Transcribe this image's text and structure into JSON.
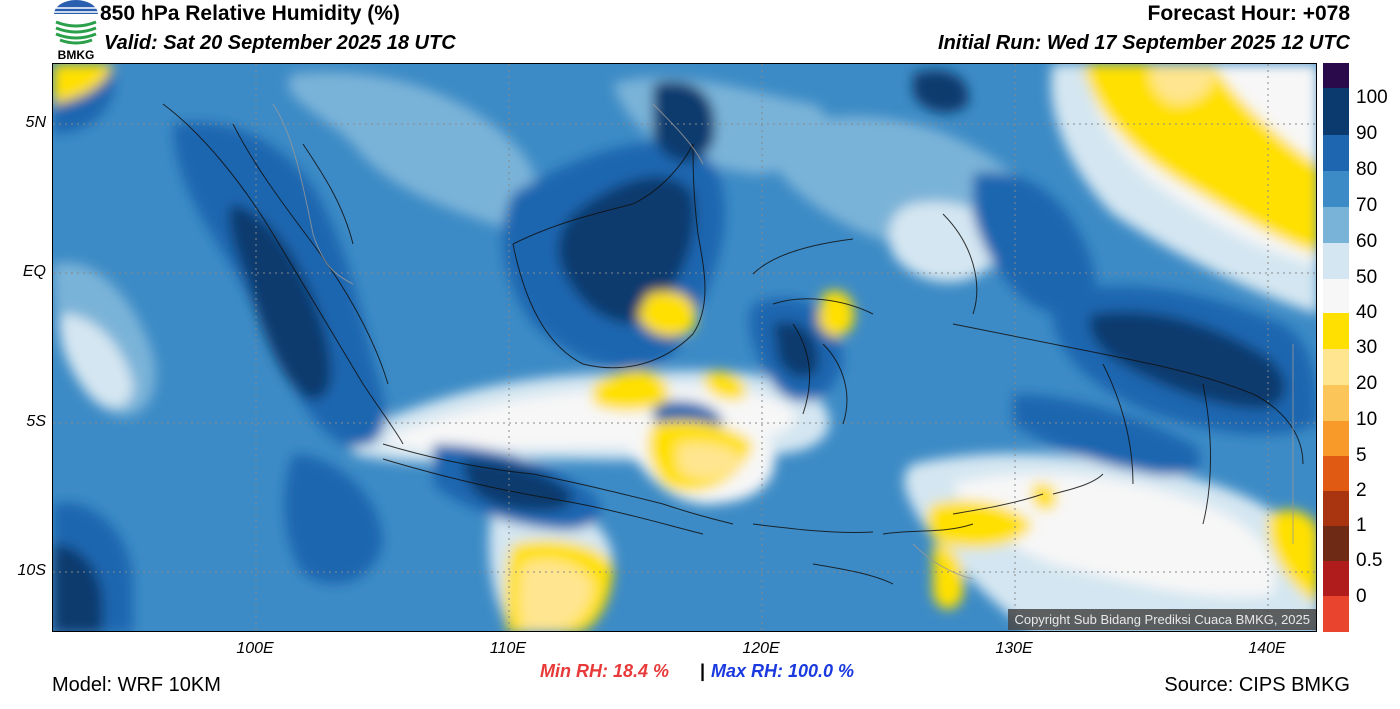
{
  "header": {
    "title": "850 hPa Relative Humidity (%)",
    "valid": "Valid: Sat 20 September 2025 18 UTC",
    "forecast_hour": "Forecast Hour: +078",
    "initial_run": "Initial Run: Wed 17 September 2025 12 UTC",
    "logo_text": "BMKG"
  },
  "map": {
    "lat_labels": [
      "5N",
      "EQ",
      "5S",
      "10S"
    ],
    "lon_labels": [
      "100E",
      "110E",
      "120E",
      "130E",
      "140E"
    ],
    "copyright": "Copyright Sub Bidang Prediksi Cuaca BMKG, 2025"
  },
  "colorbar": {
    "labels": [
      "100",
      "90",
      "80",
      "70",
      "60",
      "50",
      "40",
      "30",
      "20",
      "10",
      "5",
      "2",
      "1",
      "0.5",
      "0"
    ],
    "colors": [
      "#2a0a4a",
      "#0b3a6e",
      "#1f66b0",
      "#3d8bc6",
      "#7ab3d8",
      "#d4e6f1",
      "#f7f7f7",
      "#ffe000",
      "#ffe58f",
      "#fbc55a",
      "#f89a2a",
      "#e05a14",
      "#a83510",
      "#6e2a14",
      "#b01c1c",
      "#e8442e"
    ]
  },
  "stats": {
    "min_rh": "Min RH:  18.4 %",
    "separator": "|",
    "max_rh": "Max RH: 100.0 %"
  },
  "footer": {
    "model": "Model: WRF 10KM",
    "source": "Source: CIPS BMKG"
  }
}
